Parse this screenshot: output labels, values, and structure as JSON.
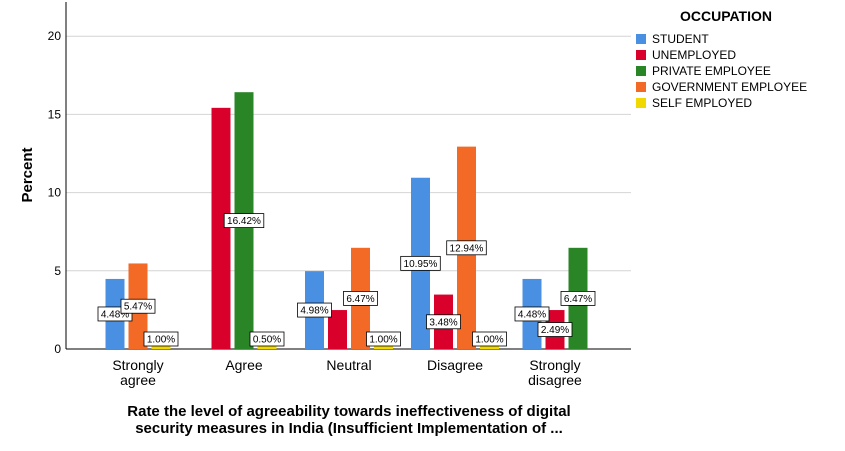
{
  "chart_data": {
    "type": "bar",
    "ylabel": "Percent",
    "xlabel_lines": [
      "Rate the level of agreeability towards ineffectiveness of digital",
      "security measures in India (Insufficient Implementation of ..."
    ],
    "ylim": [
      0,
      22
    ],
    "yticks": [
      "0",
      "5",
      "10",
      "15",
      "20"
    ],
    "grid": true,
    "legend": {
      "title": "OCCUPATION",
      "position": "top-right"
    },
    "categories": [
      [
        "Strongly",
        "agree"
      ],
      [
        "Agree"
      ],
      [
        "Neutral"
      ],
      [
        "Disagree"
      ],
      [
        "Strongly",
        "disagree"
      ]
    ],
    "series": [
      {
        "name": "STUDENT",
        "color": "#4a90e2",
        "values": [
          4.48,
          null,
          4.98,
          10.95,
          4.48
        ],
        "labels": [
          "4.48%",
          "",
          "4.98%",
          "10.95%",
          "4.48%"
        ]
      },
      {
        "name": "UNEMPLOYED",
        "color": "#d9002b",
        "values": [
          null,
          15.42,
          2.49,
          3.48,
          2.49
        ],
        "labels": [
          "",
          "",
          "",
          "3.48%",
          "2.49%"
        ]
      },
      {
        "name": "PRIVATE EMPLOYEE",
        "color": "#2a8527",
        "values": [
          null,
          16.42,
          null,
          null,
          6.47
        ],
        "labels": [
          "",
          "16.42%",
          "",
          "",
          "6.47%"
        ]
      },
      {
        "name": "GOVERNMENT EMPLOYEE",
        "color": "#f26a26",
        "values": [
          5.47,
          null,
          6.47,
          12.94,
          null
        ],
        "labels": [
          "5.47%",
          "",
          "6.47%",
          "12.94%",
          ""
        ]
      },
      {
        "name": "SELF EMPLOYED",
        "color": "#f0d800",
        "values": [
          1.0,
          0.5,
          1.0,
          1.0,
          null
        ],
        "labels": [
          "1.00%",
          "0.50%",
          "1.00%",
          "1.00%",
          ""
        ]
      }
    ]
  }
}
